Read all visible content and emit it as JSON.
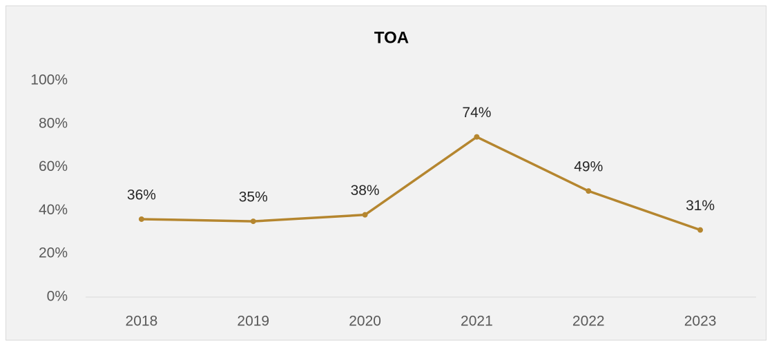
{
  "chart_data": {
    "type": "line",
    "title": "TOA",
    "categories": [
      "2018",
      "2019",
      "2020",
      "2021",
      "2022",
      "2023"
    ],
    "series": [
      {
        "name": "TOA",
        "color": "#b5862f",
        "values": [
          36,
          35,
          38,
          74,
          49,
          31
        ],
        "value_labels": [
          "36%",
          "35%",
          "38%",
          "74%",
          "49%",
          "31%"
        ]
      }
    ],
    "ylim": [
      0,
      100
    ],
    "yticks": [
      {
        "value": 0,
        "label": "0%"
      },
      {
        "value": 20,
        "label": "20%"
      },
      {
        "value": 40,
        "label": "40%"
      },
      {
        "value": 60,
        "label": "60%"
      },
      {
        "value": 80,
        "label": "80%"
      },
      {
        "value": 100,
        "label": "100%"
      }
    ],
    "grid": false,
    "legend": "none"
  }
}
